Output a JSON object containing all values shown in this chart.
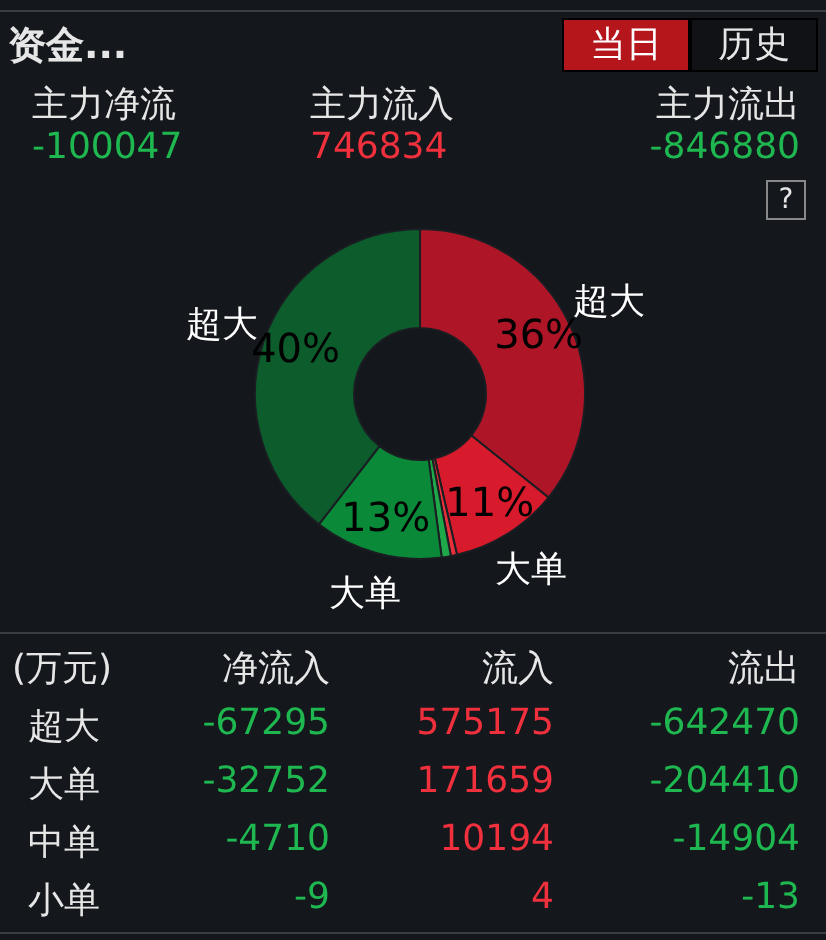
{
  "chart_data": {
    "type": "donut",
    "title": "资金...",
    "categories": [
      "超大",
      "大单",
      null,
      null,
      "大单",
      "超大"
    ],
    "values": [
      35.8,
      10.6,
      0.6,
      0.9,
      12.6,
      39.5
    ],
    "colors": [
      "#ae1628",
      "#d71a2c",
      "#e8303c",
      "#1fa84a",
      "#0a8a38",
      "#0d5c2c"
    ],
    "value_labels": [
      "36%",
      "11%",
      null,
      null,
      "13%",
      "40%"
    ],
    "legend": false,
    "annotations": [
      "当日",
      "历史",
      "主力净流",
      "主力流入",
      "主力流出",
      "-100047",
      "746834",
      "-846880",
      "?",
      "(万元)",
      "净流入",
      "流入",
      "流出",
      "超大",
      "-67295",
      "575175",
      "-642470",
      "大单",
      "-32752",
      "171659",
      "-204410",
      "中单",
      "-4710",
      "10194",
      "-14904",
      "小单",
      "-9",
      "4",
      "-13"
    ]
  }
}
